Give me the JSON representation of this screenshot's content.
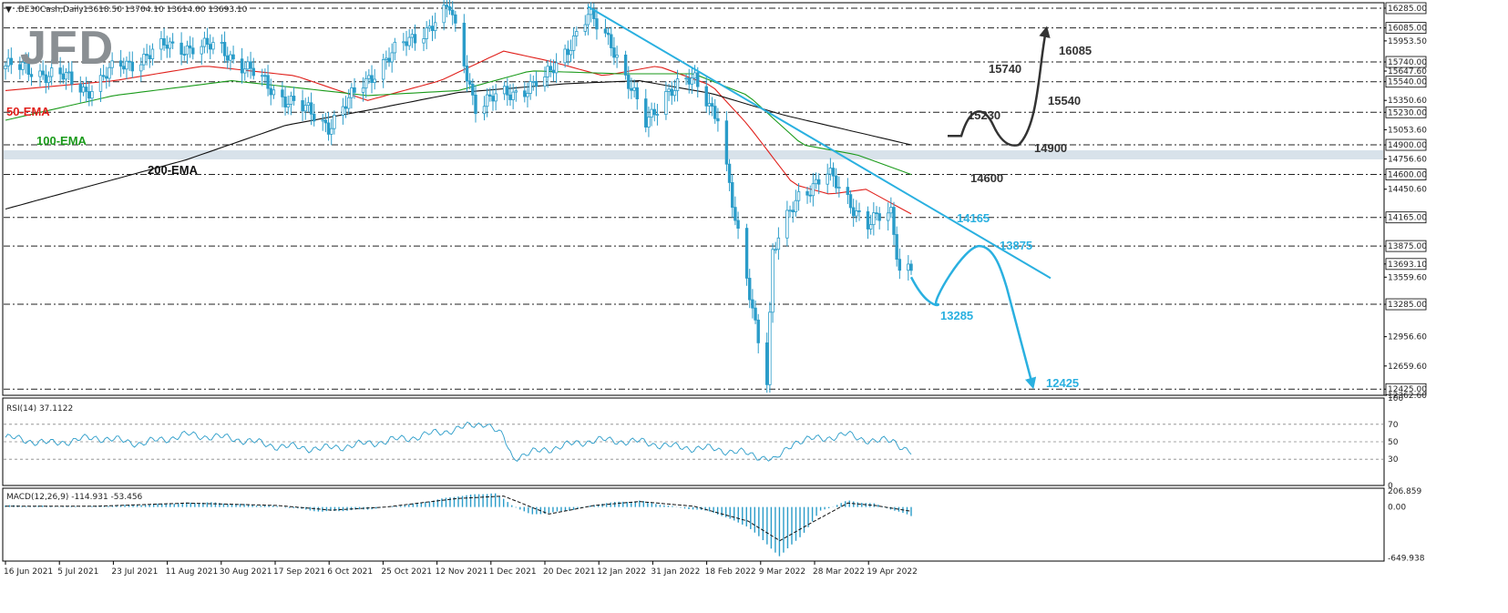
{
  "header": {
    "title": ".DE30Cash,Daily",
    "ohlc": "13618.50 13704.10 13614.00 13693.10",
    "indicator_arrow": "▼"
  },
  "logo": {
    "text": "JFD"
  },
  "colors": {
    "candle": "#2a9cc9",
    "ema50": "#e0201b",
    "ema100": "#1a9a1a",
    "ema200": "#111111",
    "trendline": "#2ab0e0",
    "path_down": "#2ab0e0",
    "path_up": "#333333",
    "grid": "#222222",
    "zone": "#d8e2ea",
    "rsi": "#2a9cc9",
    "macd_hist": "#2a9cc9",
    "macd_signal": "#111111"
  },
  "chart_data": {
    "type": "candlestick",
    "symbol": ".DE30Cash",
    "timeframe": "Daily",
    "price_axis": {
      "ylim": [
        12362.6,
        16340
      ],
      "tick_labels": [
        "16285.00",
        "16085.00",
        "15953.50",
        "15740.00",
        "15647.60",
        "15540.00",
        "15350.60",
        "15230.00",
        "15053.60",
        "14900.00",
        "14756.60",
        "14600.00",
        "14450.60",
        "14165.00",
        "13875.00",
        "13693.10",
        "13559.60",
        "13285.00",
        "12956.60",
        "12659.60",
        "12425.00",
        "12362.60"
      ],
      "highlighted_levels": [
        "16285.00",
        "16085.00",
        "15740.00",
        "15540.00",
        "15230.00",
        "14900.00",
        "14600.00",
        "14165.00",
        "13875.00",
        "13285.00",
        "12425.00"
      ],
      "current_price": "13693.10"
    },
    "levels": [
      16285,
      16085,
      15740,
      15540,
      15230,
      14900,
      14600,
      14165,
      13875,
      13285,
      12425
    ],
    "x_axis_dates": [
      "16 Jun 2021",
      "5 Jul 2021",
      "23 Jul 2021",
      "11 Aug 2021",
      "30 Aug 2021",
      "17 Sep 2021",
      "6 Oct 2021",
      "25 Oct 2021",
      "12 Nov 2021",
      "1 Dec 2021",
      "20 Dec 2021",
      "12 Jan 2022",
      "31 Jan 2022",
      "18 Feb 2022",
      "9 Mar 2022",
      "28 Mar 2022",
      "19 Apr 2022"
    ],
    "close_anchors": [
      {
        "date": "16 Jun 2021",
        "close": 15700
      },
      {
        "date": "5 Jul 2021",
        "close": 15600
      },
      {
        "date": "14 Jul 2021",
        "close": 15450
      },
      {
        "date": "23 Jul 2021",
        "close": 15650
      },
      {
        "date": "11 Aug 2021",
        "close": 15900
      },
      {
        "date": "30 Aug 2021",
        "close": 15880
      },
      {
        "date": "17 Sep 2021",
        "close": 15450
      },
      {
        "date": "6 Oct 2021",
        "close": 15100
      },
      {
        "date": "25 Oct 2021",
        "close": 15750
      },
      {
        "date": "12 Nov 2021",
        "close": 16150
      },
      {
        "date": "17 Nov 2021",
        "close": 16280
      },
      {
        "date": "26 Nov 2021",
        "close": 15300
      },
      {
        "date": "1 Dec 2021",
        "close": 15350
      },
      {
        "date": "20 Dec 2021",
        "close": 15550
      },
      {
        "date": "4 Jan 2022",
        "close": 16200
      },
      {
        "date": "12 Jan 2022",
        "close": 15950
      },
      {
        "date": "24 Jan 2022",
        "close": 15100
      },
      {
        "date": "31 Jan 2022",
        "close": 15450
      },
      {
        "date": "10 Feb 2022",
        "close": 15550
      },
      {
        "date": "18 Feb 2022",
        "close": 15200
      },
      {
        "date": "24 Feb 2022",
        "close": 14100
      },
      {
        "date": "7 Mar 2022",
        "close": 12550
      },
      {
        "date": "9 Mar 2022",
        "close": 13800
      },
      {
        "date": "18 Mar 2022",
        "close": 14400
      },
      {
        "date": "28 Mar 2022",
        "close": 14600
      },
      {
        "date": "11 Apr 2022",
        "close": 14100
      },
      {
        "date": "19 Apr 2022",
        "close": 14200
      },
      {
        "date": "22 Apr 2022",
        "close": 13650
      },
      {
        "date": "26 Apr 2022",
        "close": 13693.1
      }
    ],
    "ema": [
      {
        "name": "50-EMA",
        "anchors": [
          [
            0,
            15450
          ],
          [
            0.12,
            15550
          ],
          [
            0.22,
            15700
          ],
          [
            0.32,
            15600
          ],
          [
            0.4,
            15350
          ],
          [
            0.48,
            15550
          ],
          [
            0.55,
            15850
          ],
          [
            0.6,
            15750
          ],
          [
            0.66,
            15600
          ],
          [
            0.72,
            15700
          ],
          [
            0.78,
            15500
          ],
          [
            0.82,
            15100
          ],
          [
            0.87,
            14500
          ],
          [
            0.91,
            14400
          ],
          [
            0.95,
            14450
          ],
          [
            1.0,
            14200
          ]
        ]
      },
      {
        "name": "100-EMA",
        "anchors": [
          [
            0,
            15150
          ],
          [
            0.12,
            15400
          ],
          [
            0.25,
            15550
          ],
          [
            0.4,
            15400
          ],
          [
            0.5,
            15450
          ],
          [
            0.58,
            15650
          ],
          [
            0.68,
            15620
          ],
          [
            0.76,
            15620
          ],
          [
            0.82,
            15400
          ],
          [
            0.88,
            14900
          ],
          [
            0.94,
            14800
          ],
          [
            1.0,
            14600
          ]
        ]
      },
      {
        "name": "200-EMA",
        "anchors": [
          [
            0,
            14250
          ],
          [
            0.1,
            14500
          ],
          [
            0.2,
            14750
          ],
          [
            0.31,
            15100
          ],
          [
            0.4,
            15250
          ],
          [
            0.5,
            15430
          ],
          [
            0.62,
            15520
          ],
          [
            0.7,
            15550
          ],
          [
            0.78,
            15420
          ],
          [
            0.86,
            15200
          ],
          [
            0.93,
            15050
          ],
          [
            1.0,
            14900
          ]
        ]
      }
    ],
    "rsi": {
      "label": "RSI(14) 37.1122",
      "ylim": [
        0,
        100
      ],
      "tick_labels": [
        "100",
        "70",
        "50",
        "30",
        "0"
      ],
      "levels": [
        70,
        50,
        30
      ],
      "anchors": [
        [
          0,
          55
        ],
        [
          0.05,
          48
        ],
        [
          0.1,
          55
        ],
        [
          0.15,
          48
        ],
        [
          0.2,
          58
        ],
        [
          0.25,
          54
        ],
        [
          0.3,
          45
        ],
        [
          0.35,
          42
        ],
        [
          0.4,
          48
        ],
        [
          0.45,
          55
        ],
        [
          0.5,
          65
        ],
        [
          0.53,
          72
        ],
        [
          0.55,
          55
        ],
        [
          0.56,
          32
        ],
        [
          0.6,
          42
        ],
        [
          0.65,
          52
        ],
        [
          0.7,
          50
        ],
        [
          0.74,
          44
        ],
        [
          0.78,
          42
        ],
        [
          0.81,
          38
        ],
        [
          0.84,
          32
        ],
        [
          0.85,
          28
        ],
        [
          0.87,
          50
        ],
        [
          0.9,
          54
        ],
        [
          0.93,
          58
        ],
        [
          0.96,
          50
        ],
        [
          0.98,
          52
        ],
        [
          1.0,
          37.11
        ]
      ]
    },
    "macd": {
      "label": "MACD(12,26,9) -114.931 -53.456",
      "ylim": [
        -690,
        240
      ],
      "tick_labels": [
        "206.859",
        "0.00",
        "-649.938"
      ],
      "hist_anchors": [
        [
          0,
          20
        ],
        [
          0.08,
          5
        ],
        [
          0.15,
          30
        ],
        [
          0.22,
          60
        ],
        [
          0.3,
          10
        ],
        [
          0.35,
          -60
        ],
        [
          0.4,
          -30
        ],
        [
          0.45,
          40
        ],
        [
          0.5,
          140
        ],
        [
          0.54,
          180
        ],
        [
          0.56,
          20
        ],
        [
          0.58,
          -100
        ],
        [
          0.62,
          -50
        ],
        [
          0.66,
          50
        ],
        [
          0.7,
          80
        ],
        [
          0.74,
          0
        ],
        [
          0.78,
          -60
        ],
        [
          0.82,
          -250
        ],
        [
          0.855,
          -630
        ],
        [
          0.88,
          -350
        ],
        [
          0.9,
          -50
        ],
        [
          0.93,
          80
        ],
        [
          0.96,
          40
        ],
        [
          1.0,
          -114.9
        ]
      ],
      "signal_anchors": [
        [
          0,
          10
        ],
        [
          0.1,
          10
        ],
        [
          0.2,
          50
        ],
        [
          0.3,
          20
        ],
        [
          0.36,
          -40
        ],
        [
          0.42,
          0
        ],
        [
          0.5,
          110
        ],
        [
          0.55,
          140
        ],
        [
          0.6,
          -90
        ],
        [
          0.65,
          20
        ],
        [
          0.7,
          70
        ],
        [
          0.76,
          10
        ],
        [
          0.82,
          -180
        ],
        [
          0.855,
          -430
        ],
        [
          0.89,
          -200
        ],
        [
          0.93,
          50
        ],
        [
          0.96,
          20
        ],
        [
          1.0,
          -53.46
        ]
      ]
    }
  },
  "annotations": {
    "ema_labels": [
      "50-EMA",
      "100-EMA",
      "200-EMA"
    ],
    "down_scenario_labels": [
      "14165",
      "13875",
      "13285",
      "12425"
    ],
    "up_scenario_labels": [
      "15230",
      "14900",
      "14600",
      "15540",
      "15740",
      "16085"
    ]
  }
}
